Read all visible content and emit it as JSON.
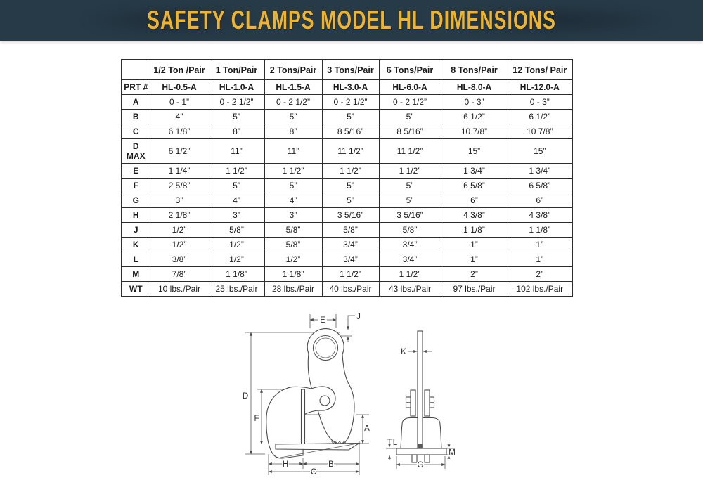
{
  "header": {
    "title": "SAFETY CLAMPS MODEL HL DIMENSIONS",
    "bg_color": "#273a48",
    "accent_color": "#efb42e"
  },
  "table": {
    "columns": [
      "",
      "1/2 Ton /Pair",
      "1 Ton/Pair",
      "2 Tons/Pair",
      "3 Tons/Pair",
      "6 Tons/Pair",
      "8 Tons/Pair",
      "12 Tons/ Pair"
    ],
    "rows": [
      {
        "label": "PRT #",
        "values": [
          "HL-0.5-A",
          "HL-1.0-A",
          "HL-1.5-A",
          "HL-3.0-A",
          "HL-6.0-A",
          "HL-8.0-A",
          "HL-12.0-A"
        ]
      },
      {
        "label": "A",
        "values": [
          "0 - 1”",
          "0 - 2 1/2”",
          "0 - 2 1/2”",
          "0 - 2 1/2”",
          "0 - 2 1/2”",
          "0 - 3”",
          "0 - 3”"
        ]
      },
      {
        "label": "B",
        "values": [
          "4”",
          "5”",
          "5”",
          "5”",
          "5”",
          "6 1/2”",
          "6 1/2”"
        ]
      },
      {
        "label": "C",
        "values": [
          "6 1/8”",
          "8”",
          "8”",
          "8 5/16”",
          "8 5/16”",
          "10 7/8”",
          "10 7/8”"
        ]
      },
      {
        "label": "D\nMAX",
        "values": [
          "6 1/2”",
          "11”",
          "11”",
          "11 1/2”",
          "11 1/2”",
          "15”",
          "15”"
        ]
      },
      {
        "label": "E",
        "values": [
          "1 1/4”",
          "1 1/2”",
          "1 1/2”",
          "1 1/2”",
          "1 1/2”",
          "1 3/4”",
          "1 3/4”"
        ]
      },
      {
        "label": "F",
        "values": [
          "2 5/8”",
          "5”",
          "5”",
          "5”",
          "5”",
          "6 5/8”",
          "6 5/8”"
        ]
      },
      {
        "label": "G",
        "values": [
          "3”",
          "4”",
          "4”",
          "5”",
          "5”",
          "6”",
          "6”"
        ]
      },
      {
        "label": "H",
        "values": [
          "2 1/8”",
          "3”",
          "3”",
          "3 5/16”",
          "3 5/16”",
          "4 3/8”",
          "4 3/8”"
        ]
      },
      {
        "label": "J",
        "values": [
          "1/2”",
          "5/8”",
          "5/8”",
          "5/8”",
          "5/8”",
          "1 1/8”",
          "1 1/8”"
        ]
      },
      {
        "label": "K",
        "values": [
          "1/2”",
          "1/2”",
          "5/8”",
          "3/4”",
          "3/4”",
          "1”",
          "1”"
        ]
      },
      {
        "label": "L",
        "values": [
          "3/8”",
          "1/2”",
          "1/2”",
          "3/4”",
          "3/4”",
          "1”",
          "1”"
        ]
      },
      {
        "label": "M",
        "values": [
          "7/8”",
          "1 1/8”",
          "1 1/8”",
          "1 1/2”",
          "1 1/2”",
          "2”",
          "2”"
        ]
      },
      {
        "label": "WT",
        "values": [
          "10 lbs./Pair",
          "25 lbs./Pair",
          "28 lbs./Pair",
          "40 lbs./Pair",
          "43 lbs./Pair",
          "97 lbs./Pair",
          "102 lbs./Pair"
        ]
      }
    ]
  },
  "diagram": {
    "labels": {
      "E": "E",
      "J": "J",
      "D": "D",
      "F": "F",
      "A": "A",
      "H": "H",
      "B": "B",
      "C": "C",
      "K": "K",
      "L": "L",
      "M": "M",
      "G": "G"
    }
  }
}
